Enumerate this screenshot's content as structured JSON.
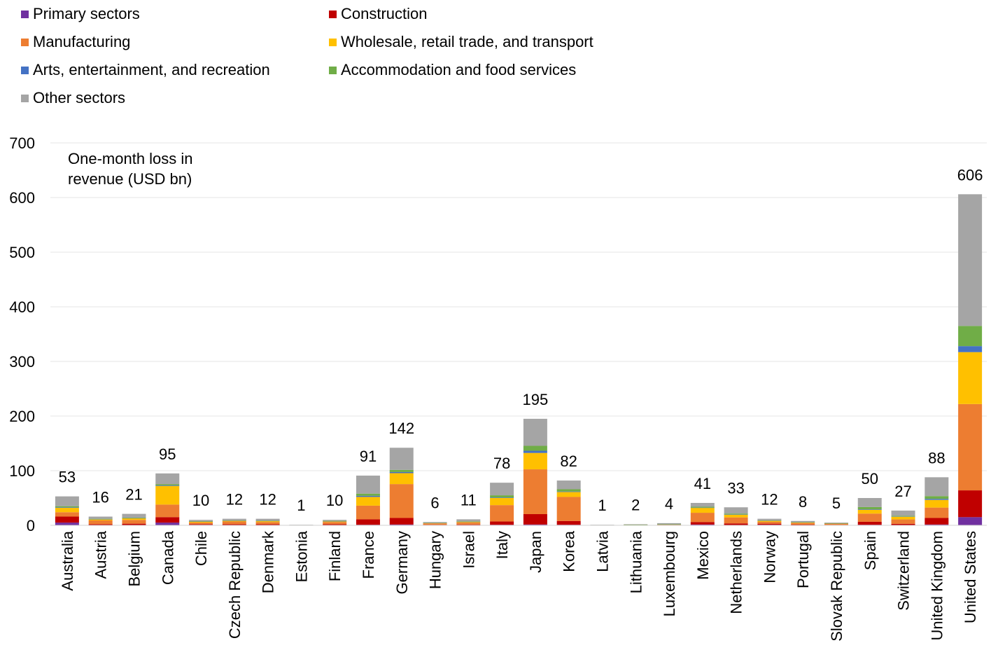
{
  "chart_data": {
    "type": "bar",
    "stacked": true,
    "title": "",
    "xlabel": "",
    "ylabel": "One-month loss in revenue (USD bn)",
    "ylabel_lines": [
      "One-month loss in",
      "revenue (USD bn)"
    ],
    "ylim": [
      0,
      700
    ],
    "yticks": [
      "0",
      "100",
      "200",
      "300",
      "400",
      "500",
      "600",
      "700"
    ],
    "grid": true,
    "legend_position": "top-left",
    "categories": [
      "Australia",
      "Austria",
      "Belgium",
      "Canada",
      "Chile",
      "Czech Republic",
      "Denmark",
      "Estonia",
      "Finland",
      "France",
      "Germany",
      "Hungary",
      "Israel",
      "Italy",
      "Japan",
      "Korea",
      "Latvia",
      "Lithuania",
      "Luxembourg",
      "Mexico",
      "Netherlands",
      "Norway",
      "Portugal",
      "Slovak Republic",
      "Spain",
      "Switzerland",
      "United Kingdom",
      "United States"
    ],
    "totals": [
      "53",
      "16",
      "21",
      "95",
      "10",
      "12",
      "12",
      "1",
      "10",
      "91",
      "142",
      "6",
      "11",
      "78",
      "195",
      "82",
      "1",
      "2",
      "4",
      "41",
      "33",
      "12",
      "8",
      "5",
      "50",
      "27",
      "88",
      "606"
    ],
    "series": [
      {
        "name": "Primary sectors",
        "color": "#7030A0",
        "values": [
          5,
          0.5,
          0.5,
          5,
          1,
          0.5,
          0.5,
          0,
          0.5,
          1,
          1.5,
          0.3,
          0.3,
          1,
          1.5,
          1,
          0,
          0,
          0,
          1.5,
          0.5,
          1,
          0.3,
          0.2,
          1,
          0.3,
          1.5,
          15
        ]
      },
      {
        "name": "Construction",
        "color": "#C00000",
        "values": [
          11,
          1.5,
          2.5,
          10,
          1,
          1.5,
          1.5,
          0.1,
          1.5,
          10,
          12,
          0.7,
          1.2,
          6,
          19,
          7,
          0.1,
          0.2,
          0.4,
          4.5,
          3,
          2,
          1,
          0.6,
          5.5,
          2.5,
          12,
          49
        ]
      },
      {
        "name": "Manufacturing",
        "color": "#ED7D31",
        "values": [
          8,
          7,
          7,
          23,
          3,
          5,
          4,
          0.3,
          4,
          25,
          62,
          2.5,
          3.5,
          30,
          82,
          44,
          0.3,
          0.6,
          0.8,
          17,
          11,
          3.5,
          3,
          2.2,
          15,
          8,
          19,
          158
        ]
      },
      {
        "name": "Wholesale, retail trade, and transport",
        "color": "#FFC000",
        "values": [
          8,
          2,
          3,
          34,
          2,
          1.5,
          2,
          0.2,
          1.5,
          16,
          20,
          0.8,
          1.5,
          13,
          30,
          9,
          0.2,
          0.3,
          0.5,
          9,
          5,
          2,
          1.2,
          0.6,
          7,
          5,
          14,
          95
        ]
      },
      {
        "name": "Arts, entertainment, and recreation",
        "color": "#4472C4",
        "values": [
          1,
          0.3,
          0.3,
          1,
          0.2,
          0.2,
          0.2,
          0,
          0.2,
          2,
          2,
          0.1,
          0.2,
          1,
          4,
          1,
          0,
          0,
          0.1,
          0.5,
          0.5,
          0.2,
          0.2,
          0.1,
          1,
          0.5,
          2,
          11
        ]
      },
      {
        "name": "Accommodation and food services",
        "color": "#70AD47",
        "values": [
          2,
          0.7,
          1,
          2,
          0.6,
          0.5,
          0.5,
          0.1,
          0.5,
          4,
          4,
          0.3,
          0.5,
          4,
          9,
          4,
          0.1,
          0.1,
          0.2,
          1.5,
          1.5,
          0.5,
          0.5,
          0.2,
          4,
          1.2,
          5,
          37
        ]
      },
      {
        "name": "Other sectors",
        "color": "#A5A5A5",
        "values": [
          18,
          4,
          6.7,
          20,
          2.2,
          2.8,
          3.3,
          0.3,
          1.8,
          33,
          40.5,
          1.3,
          3.8,
          23,
          49.5,
          16,
          0.3,
          0.8,
          2,
          7,
          11.5,
          2.8,
          1.8,
          1.1,
          16.5,
          9.5,
          34.5,
          241
        ]
      }
    ]
  }
}
